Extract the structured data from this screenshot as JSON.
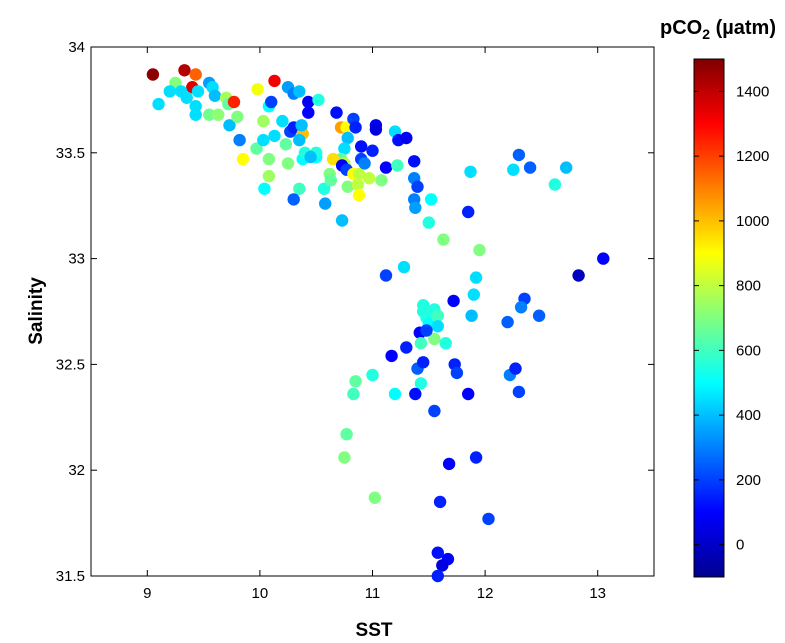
{
  "chart_data": {
    "type": "scatter",
    "title": "",
    "xlabel": "SST",
    "ylabel": "Salinity",
    "xlim": [
      8.5,
      13.5
    ],
    "ylim": [
      31.5,
      34
    ],
    "xticks": [
      9,
      10,
      11,
      12,
      13
    ],
    "yticks": [
      31.5,
      32,
      32.5,
      33,
      33.5,
      34
    ],
    "ytick_labels": [
      "31.5",
      "32",
      "32.5",
      "33",
      "33.5",
      "34"
    ],
    "grid": false,
    "colorbar": {
      "title_main": "pCO",
      "title_sub": "2",
      "title_unit": " (µatm)",
      "clim": [
        -100,
        1500
      ],
      "ticks": [
        0,
        200,
        400,
        600,
        800,
        1000,
        1200,
        1400
      ],
      "colormap": "jet"
    },
    "series": [
      {
        "points": [
          [
            9.05,
            33.87,
            1480
          ],
          [
            9.33,
            33.89,
            1420
          ],
          [
            9.43,
            33.87,
            1150
          ],
          [
            9.4,
            33.81,
            1350
          ],
          [
            9.25,
            33.83,
            700
          ],
          [
            9.1,
            33.73,
            450
          ],
          [
            9.2,
            33.79,
            450
          ],
          [
            9.3,
            33.79,
            450
          ],
          [
            9.35,
            33.76,
            450
          ],
          [
            9.45,
            33.79,
            450
          ],
          [
            9.43,
            33.72,
            450
          ],
          [
            9.43,
            33.68,
            450
          ],
          [
            9.55,
            33.83,
            350
          ],
          [
            9.58,
            33.81,
            450
          ],
          [
            9.6,
            33.77,
            400
          ],
          [
            9.55,
            33.68,
            680
          ],
          [
            9.63,
            33.68,
            720
          ],
          [
            9.7,
            33.76,
            760
          ],
          [
            9.72,
            33.73,
            650
          ],
          [
            9.77,
            33.74,
            1250
          ],
          [
            9.73,
            33.63,
            400
          ],
          [
            9.8,
            33.67,
            700
          ],
          [
            9.82,
            33.56,
            300
          ],
          [
            9.85,
            33.47,
            900
          ],
          [
            9.98,
            33.8,
            880
          ],
          [
            10.03,
            33.65,
            750
          ],
          [
            9.97,
            33.52,
            650
          ],
          [
            10.03,
            33.56,
            450
          ],
          [
            10.08,
            33.72,
            500
          ],
          [
            10.1,
            33.74,
            200
          ],
          [
            10.13,
            33.84,
            1320
          ],
          [
            10.08,
            33.47,
            700
          ],
          [
            10.08,
            33.39,
            750
          ],
          [
            10.04,
            33.33,
            500
          ],
          [
            10.13,
            33.58,
            450
          ],
          [
            10.2,
            33.65,
            450
          ],
          [
            10.25,
            33.81,
            350
          ],
          [
            10.3,
            33.78,
            300
          ],
          [
            10.35,
            33.79,
            400
          ],
          [
            10.27,
            33.6,
            200
          ],
          [
            10.3,
            33.62,
            150
          ],
          [
            10.38,
            33.59,
            1000
          ],
          [
            10.37,
            33.63,
            400
          ],
          [
            10.35,
            33.56,
            400
          ],
          [
            10.23,
            33.54,
            650
          ],
          [
            10.25,
            33.45,
            700
          ],
          [
            10.38,
            33.47,
            500
          ],
          [
            10.35,
            33.33,
            600
          ],
          [
            10.3,
            33.28,
            250
          ],
          [
            10.43,
            33.74,
            80
          ],
          [
            10.43,
            33.69,
            100
          ],
          [
            10.52,
            33.75,
            550
          ],
          [
            10.4,
            33.5,
            550
          ],
          [
            10.5,
            33.48,
            500
          ],
          [
            10.5,
            33.5,
            550
          ],
          [
            10.45,
            33.48,
            400
          ],
          [
            10.57,
            33.33,
            550
          ],
          [
            10.58,
            33.26,
            350
          ],
          [
            10.62,
            33.4,
            700
          ],
          [
            10.63,
            33.37,
            650
          ],
          [
            10.68,
            33.69,
            120
          ],
          [
            10.72,
            33.62,
            1050
          ],
          [
            10.77,
            33.62,
            900
          ],
          [
            10.78,
            33.57,
            400
          ],
          [
            10.75,
            33.52,
            450
          ],
          [
            10.72,
            33.47,
            650
          ],
          [
            10.65,
            33.47,
            950
          ],
          [
            10.75,
            33.45,
            800
          ],
          [
            10.73,
            33.44,
            100
          ],
          [
            10.77,
            33.42,
            200
          ],
          [
            10.78,
            33.34,
            700
          ],
          [
            10.83,
            33.4,
            900
          ],
          [
            10.88,
            33.4,
            800
          ],
          [
            10.87,
            33.35,
            800
          ],
          [
            10.88,
            33.3,
            900
          ],
          [
            10.83,
            33.66,
            200
          ],
          [
            10.85,
            33.62,
            150
          ],
          [
            10.9,
            33.53,
            120
          ],
          [
            10.9,
            33.47,
            200
          ],
          [
            10.93,
            33.45,
            300
          ],
          [
            10.73,
            33.18,
            400
          ],
          [
            10.97,
            33.38,
            800
          ],
          [
            11.0,
            33.51,
            150
          ],
          [
            11.03,
            33.63,
            80
          ],
          [
            11.03,
            33.61,
            50
          ],
          [
            11.08,
            33.37,
            700
          ],
          [
            11.12,
            33.43,
            100
          ],
          [
            11.2,
            33.6,
            450
          ],
          [
            11.23,
            33.56,
            120
          ],
          [
            11.22,
            33.44,
            600
          ],
          [
            11.3,
            33.57,
            80
          ],
          [
            11.37,
            33.46,
            120
          ],
          [
            11.37,
            33.38,
            300
          ],
          [
            11.4,
            33.34,
            200
          ],
          [
            11.37,
            33.28,
            300
          ],
          [
            11.38,
            33.24,
            350
          ],
          [
            11.52,
            33.28,
            500
          ],
          [
            11.5,
            33.17,
            550
          ],
          [
            11.63,
            33.09,
            700
          ],
          [
            11.87,
            33.41,
            450
          ],
          [
            11.85,
            33.22,
            150
          ],
          [
            11.95,
            33.04,
            700
          ],
          [
            11.92,
            32.91,
            450
          ],
          [
            11.9,
            32.83,
            450
          ],
          [
            12.25,
            33.42,
            450
          ],
          [
            12.3,
            33.49,
            250
          ],
          [
            12.4,
            33.43,
            250
          ],
          [
            12.62,
            33.35,
            550
          ],
          [
            12.72,
            33.43,
            400
          ],
          [
            11.12,
            32.92,
            200
          ],
          [
            11.28,
            32.96,
            450
          ],
          [
            11.45,
            32.78,
            550
          ],
          [
            11.45,
            32.75,
            550
          ],
          [
            11.48,
            32.72,
            550
          ],
          [
            11.55,
            32.76,
            550
          ],
          [
            11.58,
            32.73,
            600
          ],
          [
            11.5,
            32.69,
            500
          ],
          [
            11.58,
            32.68,
            450
          ],
          [
            11.55,
            32.62,
            700
          ],
          [
            11.65,
            32.6,
            550
          ],
          [
            11.42,
            32.65,
            100
          ],
          [
            11.48,
            32.66,
            200
          ],
          [
            11.43,
            32.6,
            600
          ],
          [
            11.72,
            32.8,
            100
          ],
          [
            11.88,
            32.73,
            400
          ],
          [
            12.2,
            32.7,
            250
          ],
          [
            12.35,
            32.81,
            200
          ],
          [
            12.32,
            32.77,
            300
          ],
          [
            12.48,
            32.73,
            250
          ],
          [
            12.83,
            32.92,
            0
          ],
          [
            13.05,
            33.0,
            100
          ],
          [
            11.3,
            32.58,
            150
          ],
          [
            11.17,
            32.54,
            100
          ],
          [
            11.4,
            32.48,
            250
          ],
          [
            11.45,
            32.51,
            150
          ],
          [
            11.73,
            32.5,
            150
          ],
          [
            11.75,
            32.46,
            200
          ],
          [
            11.43,
            32.41,
            550
          ],
          [
            11.38,
            32.36,
            120
          ],
          [
            11.55,
            32.28,
            200
          ],
          [
            11.85,
            32.36,
            100
          ],
          [
            12.22,
            32.45,
            300
          ],
          [
            12.27,
            32.48,
            150
          ],
          [
            12.3,
            32.37,
            200
          ],
          [
            10.85,
            32.42,
            650
          ],
          [
            10.83,
            32.36,
            600
          ],
          [
            11.0,
            32.45,
            550
          ],
          [
            11.2,
            32.36,
            500
          ],
          [
            10.77,
            32.17,
            650
          ],
          [
            10.75,
            32.06,
            700
          ],
          [
            11.68,
            32.03,
            100
          ],
          [
            11.92,
            32.06,
            150
          ],
          [
            11.02,
            31.87,
            700
          ],
          [
            11.6,
            31.85,
            150
          ],
          [
            12.03,
            31.77,
            200
          ],
          [
            11.58,
            31.61,
            120
          ],
          [
            11.67,
            31.58,
            100
          ],
          [
            11.62,
            31.55,
            50
          ],
          [
            11.58,
            31.5,
            150
          ]
        ]
      }
    ]
  }
}
